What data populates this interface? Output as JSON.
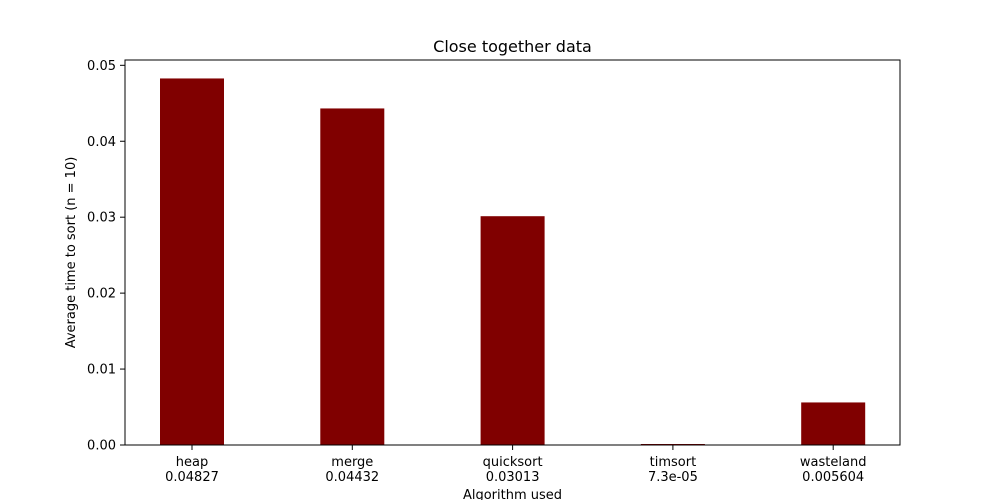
{
  "chart_data": {
    "type": "bar",
    "title": "Close together data",
    "xlabel": "Algorithm used",
    "ylabel": "Average time to sort (n = 10)",
    "categories": [
      "heap\n0.04827",
      "merge\n0.04432",
      "quicksort\n0.03013",
      "timsort\n7.3e-05",
      "wasteland\n0.005604"
    ],
    "values": [
      0.04827,
      0.04432,
      0.03013,
      7.3e-05,
      0.005604
    ],
    "bar_color": "#800000",
    "ylim": [
      0,
      0.0507
    ],
    "yticks": [
      0,
      0.01,
      0.02,
      0.03,
      0.04,
      0.05
    ],
    "ytick_labels": [
      "0.00",
      "0.01",
      "0.02",
      "0.03",
      "0.04",
      "0.05"
    ],
    "grid": false,
    "legend": "none"
  }
}
